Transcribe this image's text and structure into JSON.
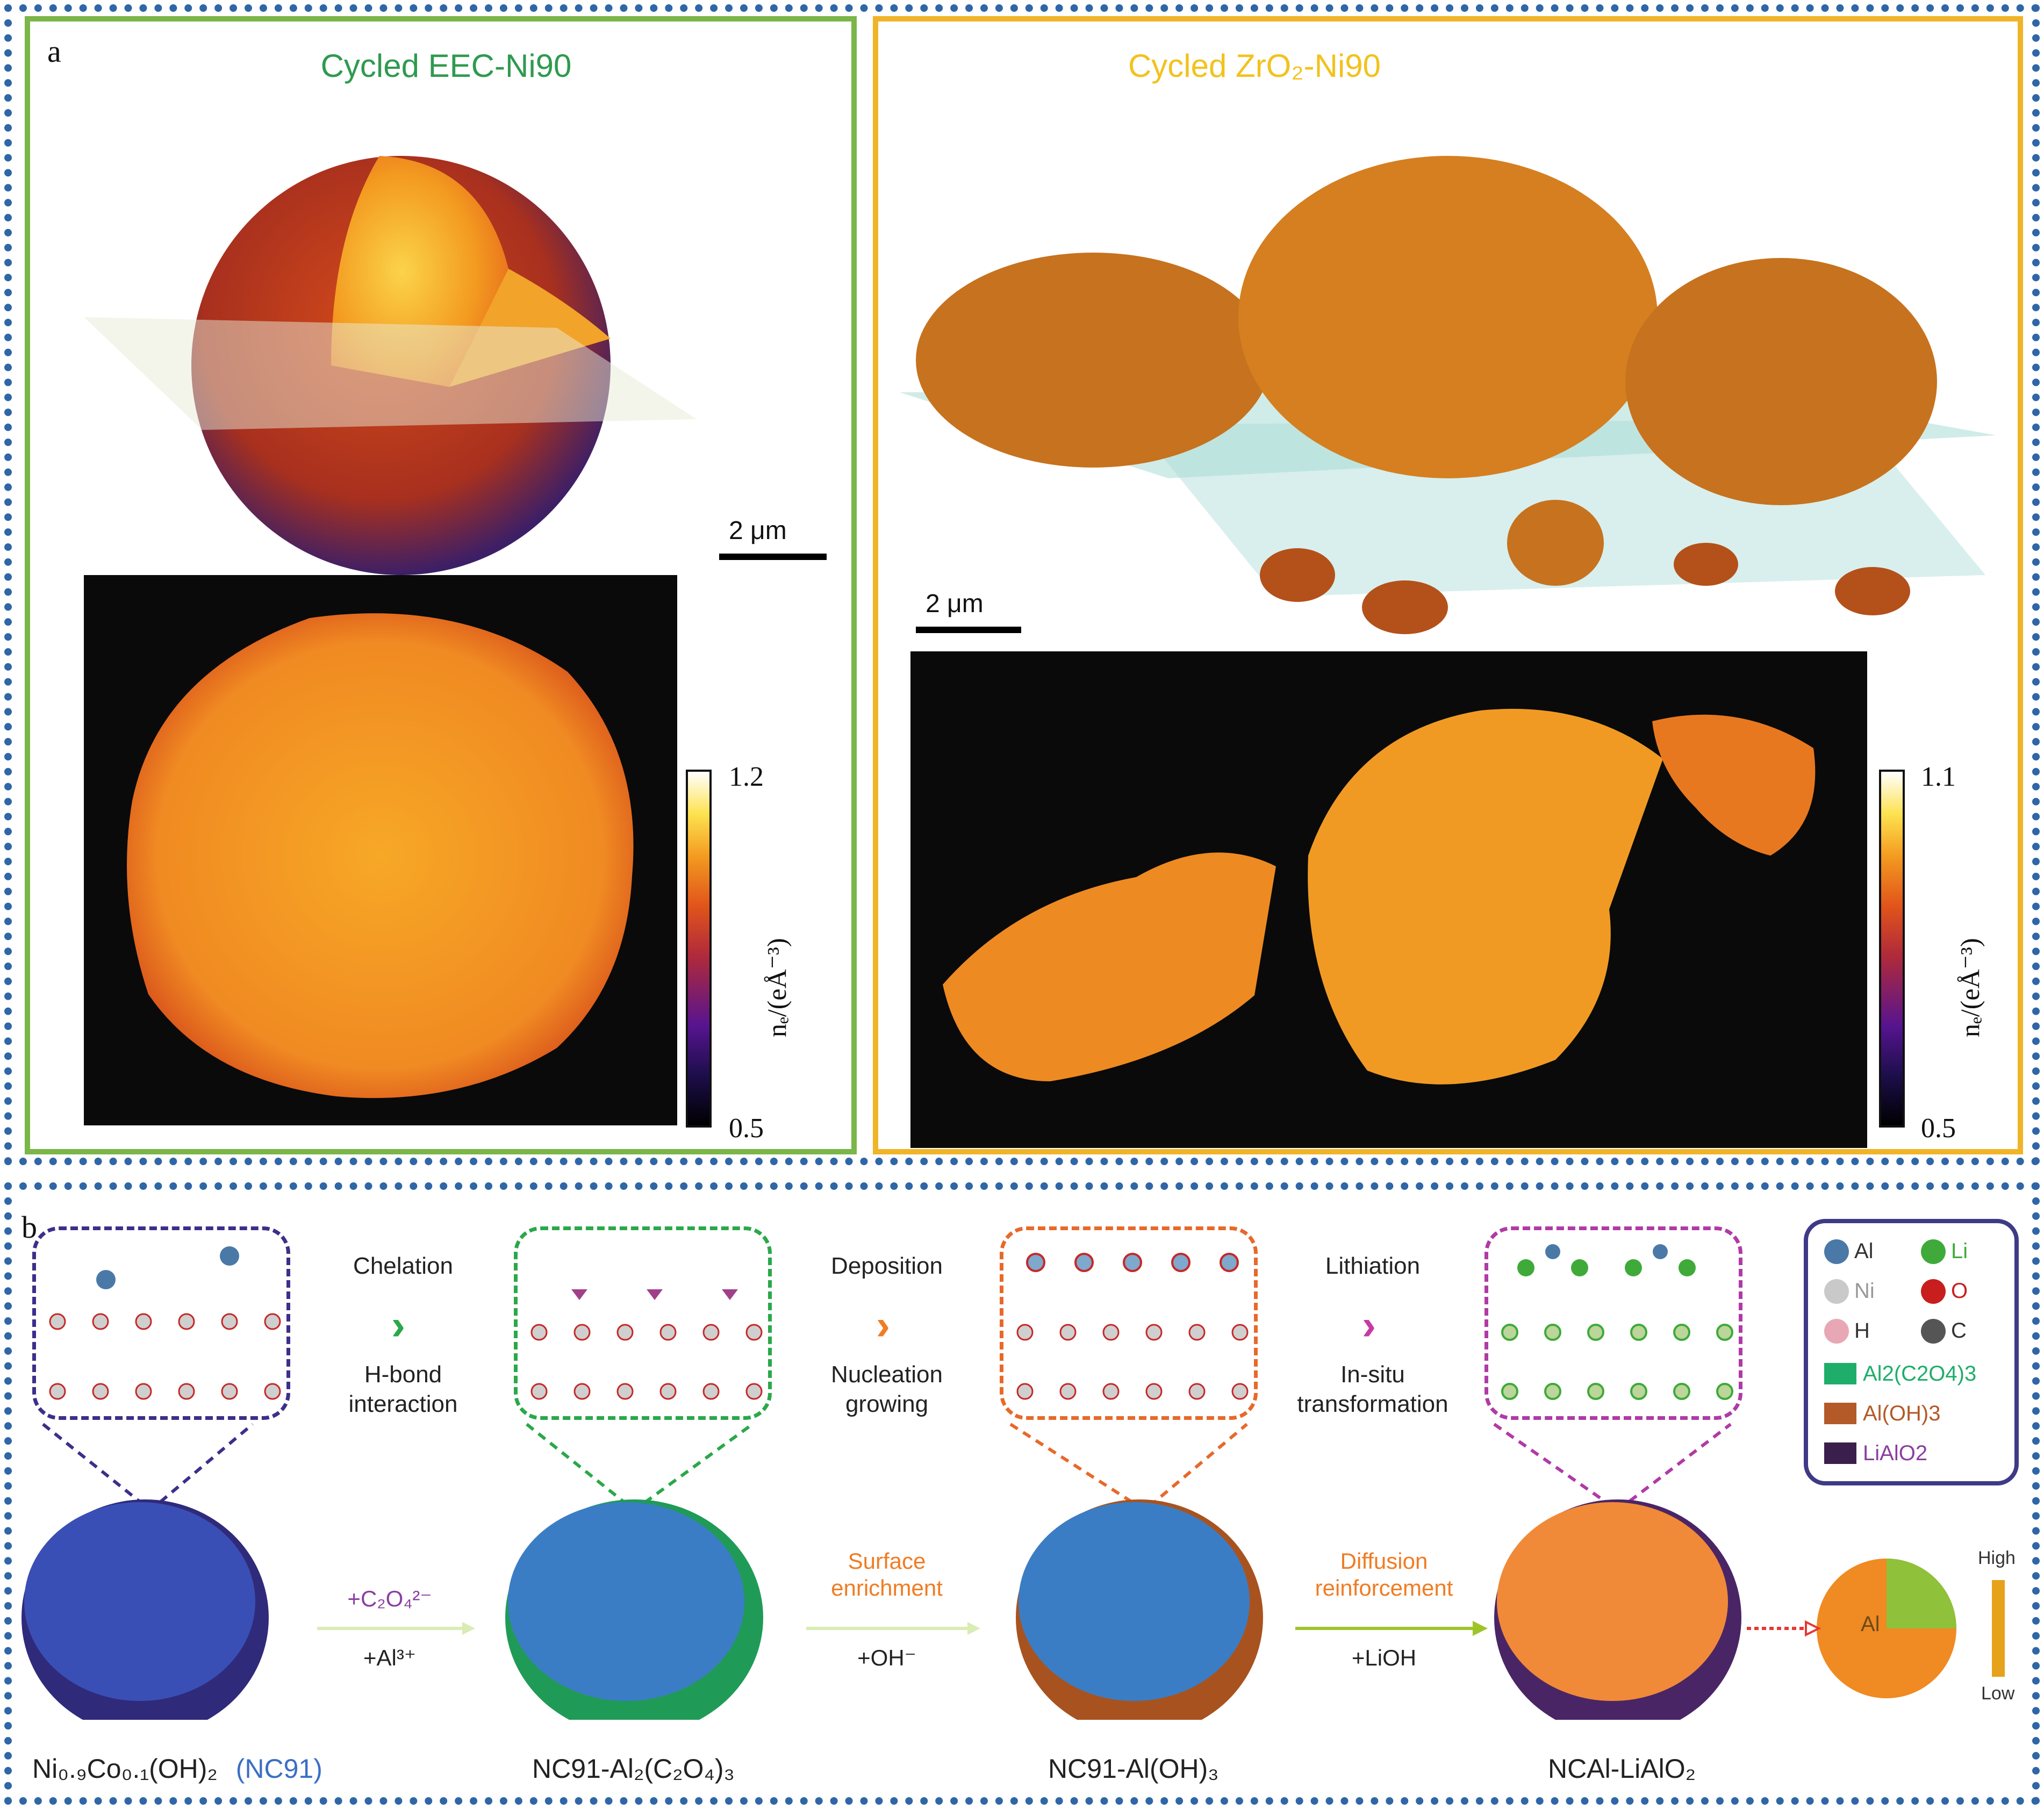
{
  "panel_a": {
    "letter": "a",
    "left": {
      "title": "Cycled EEC-Ni90",
      "title_color": "#2f9a4f",
      "frame_color": "#7ab648",
      "scalebar": "2 μm",
      "colorbar": {
        "max": "1.2",
        "min": "0.5",
        "label": "nₑ/(eÅ⁻³)"
      }
    },
    "right": {
      "title": "Cycled ZrO₂-Ni90",
      "title_color": "#f2c21d",
      "frame_color": "#f0b428",
      "scalebar": "2 μm",
      "colorbar": {
        "max": "1.1",
        "min": "0.5",
        "label": "nₑ/(eÅ⁻³)"
      }
    }
  },
  "panel_b": {
    "letter": "b",
    "steps": [
      {
        "top": "Chelation",
        "bottom": "H-bond\ninteraction",
        "chevron_color": "#2aa84a"
      },
      {
        "top": "Deposition",
        "bottom": "Nucleation\ngrowing",
        "chevron_color": "#f07c23"
      },
      {
        "top": "Lithiation",
        "bottom": "In-situ\ntransformation",
        "chevron_color": "#c83aa0"
      }
    ],
    "arrow_labels": [
      {
        "upper": "+C₂O₄²⁻",
        "lower": "+Al³⁺",
        "upper_color": "#8a3fa0"
      },
      {
        "upper": "Surface\nenrichment",
        "lower": "+OH⁻",
        "upper_color": "#f07c23"
      },
      {
        "upper": "Diffusion\nreinforcement",
        "lower": "+LiOH",
        "upper_color": "#f07c23"
      }
    ],
    "names": [
      "Ni₀.₉Co₀.₁(OH)₂",
      "NC91-Al₂(C₂O₄)₃",
      "NC91-Al(OH)₃",
      "NCAl-LiAlO₂"
    ],
    "name_suffix": "(NC91)",
    "legend": {
      "atoms": [
        {
          "label": "Al",
          "color": "#4a79a8"
        },
        {
          "label": "Li",
          "color": "#3faa3a"
        },
        {
          "label": "Ni",
          "color": "#c9c9c9"
        },
        {
          "label": "O",
          "color": "#c81e1e"
        },
        {
          "label": "H",
          "color": "#e8a7b4"
        },
        {
          "label": "C",
          "color": "#555555"
        }
      ],
      "phases": [
        {
          "label": "Al2(C2O4)3",
          "color": "#1fae6a"
        },
        {
          "label": "Al(OH)3",
          "color": "#b35a28"
        },
        {
          "label": "LiAlO2",
          "color": "#3a1f4c"
        }
      ]
    },
    "gradient": {
      "high": "High",
      "low": "Low",
      "center": "Al"
    }
  }
}
